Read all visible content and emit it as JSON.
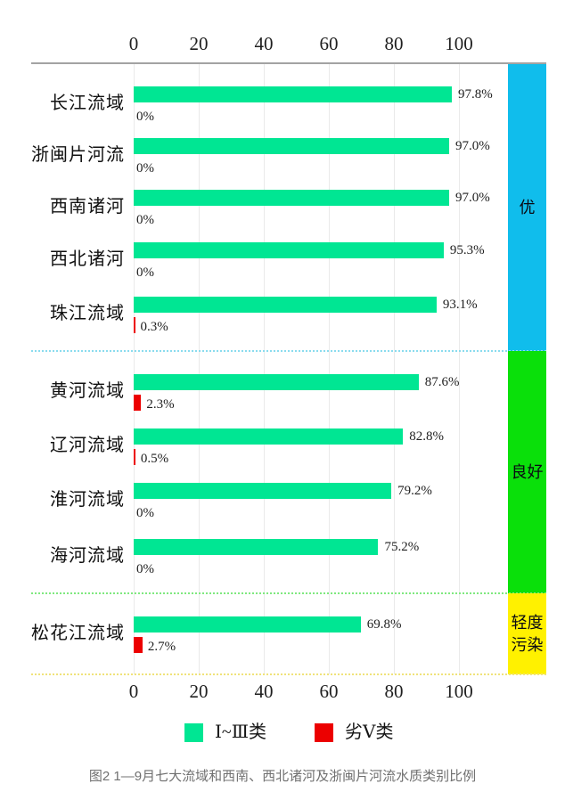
{
  "chart_data": {
    "type": "bar",
    "orientation": "horizontal",
    "title": "",
    "x_axis": {
      "ticks": [
        0,
        20,
        40,
        60,
        80,
        100
      ],
      "range": [
        0,
        100
      ],
      "unit": "%",
      "grid": true,
      "tick_labels_top_and_bottom": true
    },
    "categories": [
      "长江流域",
      "浙闽片河流",
      "西南诸河",
      "西北诸河",
      "珠江流域",
      "黄河流域",
      "辽河流域",
      "淮河流域",
      "海河流域",
      "松花江流域"
    ],
    "series": [
      {
        "name": "Ⅰ~Ⅲ类",
        "color": "#00e693",
        "values": [
          97.8,
          97.0,
          97.0,
          95.3,
          93.1,
          87.6,
          82.8,
          79.2,
          75.2,
          69.8
        ],
        "labels": [
          "97.8%",
          "97.0%",
          "97.0%",
          "95.3%",
          "93.1%",
          "87.6%",
          "82.8%",
          "79.2%",
          "75.2%",
          "69.8%"
        ]
      },
      {
        "name": "劣Ⅴ类",
        "color": "#ec0000",
        "values": [
          0,
          0,
          0,
          0,
          0.3,
          2.3,
          0.5,
          0,
          0,
          2.7
        ],
        "labels": [
          "0%",
          "0%",
          "0%",
          "0%",
          "0.3%",
          "2.3%",
          "0.5%",
          "0%",
          "0%",
          "2.7%"
        ]
      }
    ],
    "sections": [
      {
        "label": "优",
        "color": "#10bdec",
        "separator_color": "#8adcee",
        "row_count": 5
      },
      {
        "label": "良好",
        "color": "#0ae00a",
        "separator_color": "#7fe87f",
        "row_count": 4
      },
      {
        "label": "轻度污染",
        "color": "#fff100",
        "separator_color": "#f0e27a",
        "row_count": 1
      }
    ],
    "legend_position": "bottom"
  },
  "legend": {
    "items": [
      {
        "label": "Ⅰ~Ⅲ类",
        "color": "#00e693"
      },
      {
        "label": "劣Ⅴ类",
        "color": "#ec0000"
      }
    ]
  },
  "caption": "图2  1—9月七大流域和西南、西北诸河及浙闽片河流水质类别比例"
}
